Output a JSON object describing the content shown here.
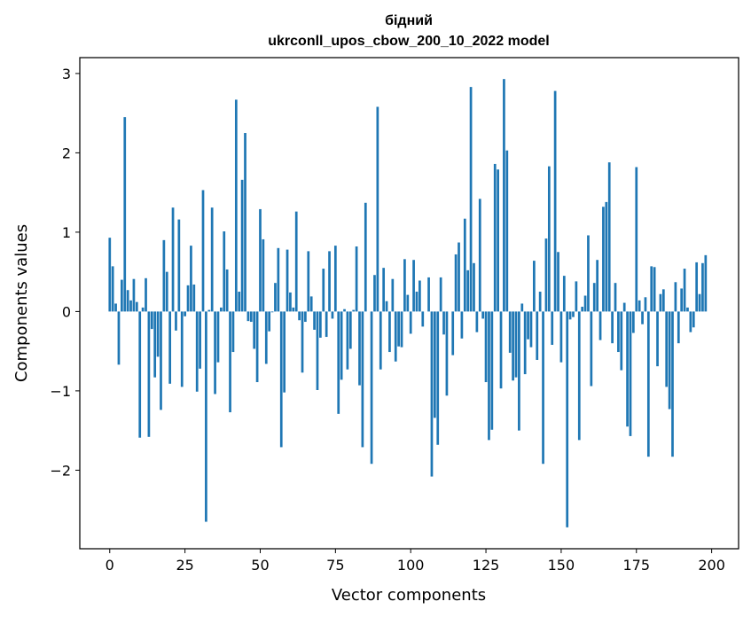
{
  "chart_data": {
    "type": "bar",
    "title_line1": "бідний",
    "title_line2": "ukrconll_upos_cbow_200_10_2022 model",
    "xlabel": "Vector components",
    "ylabel": "Components values",
    "xlim": [
      -9.95,
      208.95
    ],
    "ylim": [
      -2.99,
      3.2
    ],
    "x_ticks": [
      0,
      25,
      50,
      75,
      100,
      125,
      150,
      175,
      200
    ],
    "x_tick_labels": [
      "0",
      "25",
      "50",
      "75",
      "100",
      "125",
      "150",
      "175",
      "200"
    ],
    "y_ticks": [
      -2,
      -1,
      0,
      1,
      2,
      3
    ],
    "y_tick_labels": [
      "−2",
      "−1",
      "0",
      "1",
      "2",
      "3"
    ],
    "grid": false,
    "bar_color": "#1f77b4",
    "values": [
      0.93,
      0.57,
      0.1,
      -0.67,
      0.4,
      2.45,
      0.27,
      0.14,
      0.41,
      0.12,
      -1.59,
      0.05,
      0.42,
      -1.58,
      -0.22,
      -0.83,
      -0.57,
      -1.24,
      0.9,
      0.5,
      -0.91,
      1.31,
      -0.24,
      1.16,
      -0.95,
      -0.06,
      0.33,
      0.83,
      0.34,
      -1.01,
      -0.72,
      1.53,
      -2.65,
      0.02,
      1.31,
      -1.04,
      -0.64,
      0.05,
      1.01,
      0.53,
      -1.27,
      -0.51,
      2.67,
      0.25,
      1.66,
      2.25,
      -0.12,
      -0.13,
      -0.47,
      -0.89,
      1.29,
      0.91,
      -0.66,
      -0.25,
      -0.01,
      0.36,
      0.8,
      -1.71,
      -1.02,
      0.78,
      0.24,
      0.05,
      1.26,
      -0.11,
      -0.77,
      -0.13,
      0.76,
      0.19,
      -0.23,
      -0.99,
      -0.33,
      0.54,
      -0.32,
      0.76,
      -0.09,
      0.83,
      -1.29,
      -0.86,
      0.03,
      -0.73,
      -0.47,
      0.02,
      0.82,
      -0.93,
      -1.71,
      1.37,
      0.0,
      -1.92,
      0.46,
      2.58,
      -0.73,
      0.55,
      0.13,
      -0.51,
      0.41,
      -0.63,
      -0.44,
      -0.45,
      0.66,
      0.21,
      -0.28,
      0.65,
      0.25,
      0.39,
      -0.19,
      0.0,
      0.43,
      -2.08,
      -1.34,
      -1.68,
      0.43,
      -0.29,
      -1.06,
      0.0,
      -0.55,
      0.72,
      0.87,
      -0.34,
      1.17,
      0.52,
      2.83,
      0.61,
      -0.26,
      1.42,
      -0.09,
      -0.89,
      -1.62,
      -1.49,
      1.86,
      1.79,
      -0.97,
      2.93,
      2.03,
      -0.52,
      -0.87,
      -0.83,
      -1.5,
      0.1,
      -0.79,
      -0.35,
      -0.45,
      0.64,
      -0.61,
      0.25,
      -1.92,
      0.92,
      1.83,
      -0.42,
      2.78,
      0.75,
      -0.64,
      0.45,
      -2.72,
      -0.1,
      -0.07,
      0.38,
      -1.62,
      0.06,
      0.2,
      0.96,
      -0.94,
      0.36,
      0.65,
      -0.36,
      1.32,
      1.38,
      1.88,
      -0.4,
      0.36,
      -0.51,
      -0.74,
      0.11,
      -1.45,
      -1.57,
      -0.27,
      1.82,
      0.14,
      -0.16,
      0.18,
      -1.83,
      0.57,
      0.56,
      -0.69,
      0.22,
      0.28,
      -0.95,
      -1.23,
      -1.83,
      0.37,
      -0.4,
      0.29,
      0.54,
      0.05,
      -0.26,
      -0.2,
      0.62,
      0.22,
      0.61,
      0.71
    ]
  }
}
